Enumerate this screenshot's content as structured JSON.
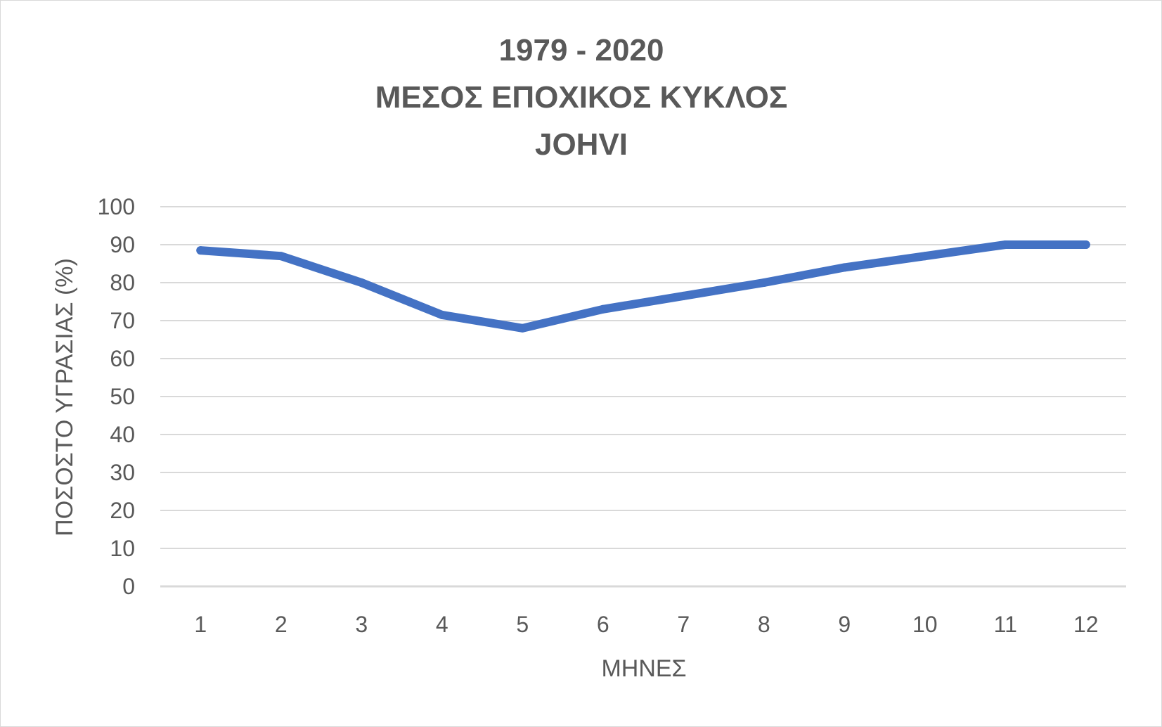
{
  "chart_data": {
    "type": "line",
    "title_lines": [
      "1979 - 2020",
      "ΜΕΣΟΣ ΕΠΟΧΙΚΟΣ ΚΥΚΛΟΣ",
      "JOHVI"
    ],
    "xlabel": "ΜΗΝΕΣ",
    "ylabel": "ΠΟΣΟΣΤΟ ΥΓΡΑΣΙΑΣ (%)",
    "x": [
      "1",
      "2",
      "3",
      "4",
      "5",
      "6",
      "7",
      "8",
      "9",
      "10",
      "11",
      "12"
    ],
    "series": [
      {
        "values": [
          88.5,
          87,
          80,
          71.5,
          68,
          73,
          76.5,
          80,
          84,
          87,
          90,
          90
        ],
        "color": "#4472c4"
      }
    ],
    "ylim": [
      0,
      100
    ],
    "yticks": [
      0,
      10,
      20,
      30,
      40,
      50,
      60,
      70,
      80,
      90,
      100
    ],
    "grid": true,
    "legend": "none"
  }
}
